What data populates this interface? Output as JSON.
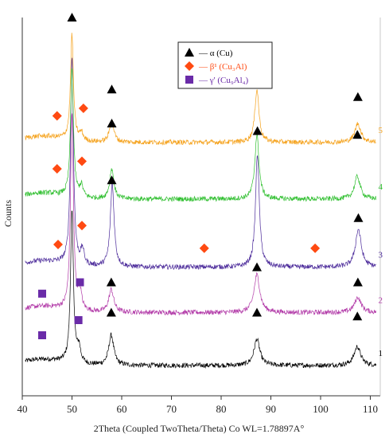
{
  "chart_data": {
    "type": "line",
    "title": "",
    "xlabel": "2Theta (Coupled TwoTheta/Theta) Co WL=1.78897A°",
    "ylabel": "Counts",
    "xlim": [
      40,
      112
    ],
    "xticks": [
      40,
      50,
      60,
      70,
      80,
      90,
      100,
      110
    ],
    "ylim": [
      0,
      100
    ],
    "grid": false,
    "legend_position": "top-center",
    "legend": [
      {
        "marker": "triangle",
        "text": "— α (Cu)",
        "color": "#000000"
      },
      {
        "marker": "diamond",
        "text": "— β¹ (Cu₃Al)",
        "color": "#ff4a12"
      },
      {
        "marker": "square",
        "text": "— γ' (Cu₉Al₄)",
        "color": "#6a2ba8"
      }
    ],
    "series": [
      {
        "name": "1",
        "color": "#000000",
        "baseline": 8,
        "peaks": [
          {
            "x": 50.0,
            "h": 40,
            "w": 0.35
          },
          {
            "x": 51.4,
            "h": 4,
            "w": 0.4
          },
          {
            "x": 57.9,
            "h": 8,
            "w": 0.6
          },
          {
            "x": 87.2,
            "h": 7,
            "w": 0.7
          },
          {
            "x": 107.4,
            "h": 5,
            "w": 0.8
          }
        ],
        "markers": [
          {
            "type": "square",
            "x": 44.0,
            "y": 16
          },
          {
            "type": "square",
            "x": 51.3,
            "y": 20
          },
          {
            "type": "triangle",
            "x": 57.9,
            "y": 22
          },
          {
            "type": "triangle",
            "x": 87.2,
            "y": 22
          },
          {
            "type": "triangle",
            "x": 107.4,
            "y": 21
          }
        ]
      },
      {
        "name": "2",
        "color": "#b23aa8",
        "baseline": 22,
        "peaks": [
          {
            "x": 50.0,
            "h": 52,
            "w": 0.35
          },
          {
            "x": 51.6,
            "h": 5,
            "w": 0.4
          },
          {
            "x": 57.9,
            "h": 6,
            "w": 0.6
          },
          {
            "x": 87.2,
            "h": 10,
            "w": 0.7
          },
          {
            "x": 107.5,
            "h": 4,
            "w": 0.8
          }
        ],
        "markers": [
          {
            "type": "square",
            "x": 44.0,
            "y": 27
          },
          {
            "type": "square",
            "x": 51.6,
            "y": 30
          },
          {
            "type": "triangle",
            "x": 57.9,
            "y": 30
          },
          {
            "type": "triangle",
            "x": 87.2,
            "y": 34
          },
          {
            "type": "triangle",
            "x": 107.5,
            "y": 30
          }
        ]
      },
      {
        "name": "3",
        "color": "#4b2a9a",
        "baseline": 34,
        "peaks": [
          {
            "x": 50.0,
            "h": 55,
            "w": 0.35
          },
          {
            "x": 52.1,
            "h": 4,
            "w": 0.4
          },
          {
            "x": 58.1,
            "h": 22,
            "w": 0.45
          },
          {
            "x": 87.3,
            "h": 30,
            "w": 0.45
          },
          {
            "x": 107.6,
            "h": 10,
            "w": 0.7
          }
        ],
        "markers": [
          {
            "type": "diamond",
            "x": 47.2,
            "y": 40
          },
          {
            "type": "diamond",
            "x": 52.0,
            "y": 45
          },
          {
            "type": "triangle",
            "x": 58.0,
            "y": 57
          },
          {
            "type": "diamond",
            "x": 76.6,
            "y": 39
          },
          {
            "type": "triangle",
            "x": 87.3,
            "y": 70
          },
          {
            "type": "diamond",
            "x": 98.9,
            "y": 39
          },
          {
            "type": "triangle",
            "x": 107.6,
            "y": 47
          }
        ]
      },
      {
        "name": "4",
        "color": "#2fbf2f",
        "baseline": 52,
        "peaks": [
          {
            "x": 50.0,
            "h": 34,
            "w": 0.35
          },
          {
            "x": 51.9,
            "h": 3,
            "w": 0.4
          },
          {
            "x": 58.0,
            "h": 8,
            "w": 0.5
          },
          {
            "x": 87.2,
            "h": 17,
            "w": 0.5
          },
          {
            "x": 107.4,
            "h": 6,
            "w": 0.7
          }
        ],
        "markers": [
          {
            "type": "diamond",
            "x": 47.0,
            "y": 60
          },
          {
            "type": "diamond",
            "x": 52.0,
            "y": 62
          },
          {
            "type": "triangle",
            "x": 58.0,
            "y": 72
          },
          {
            "type": "triangle",
            "x": 87.2,
            "y": 87
          },
          {
            "type": "triangle",
            "x": 107.4,
            "y": 69
          }
        ]
      },
      {
        "name": "5",
        "color": "#f5a21c",
        "baseline": 67,
        "peaks": [
          {
            "x": 50.0,
            "h": 28,
            "w": 0.35
          },
          {
            "x": 51.9,
            "h": 2,
            "w": 0.4
          },
          {
            "x": 58.0,
            "h": 6,
            "w": 0.5
          },
          {
            "x": 87.2,
            "h": 14,
            "w": 0.5
          },
          {
            "x": 107.5,
            "h": 5,
            "w": 0.7
          }
        ],
        "markers": [
          {
            "type": "triangle",
            "x": 50.0,
            "y": 100
          },
          {
            "type": "diamond",
            "x": 47.0,
            "y": 74
          },
          {
            "type": "diamond",
            "x": 52.3,
            "y": 76
          },
          {
            "type": "triangle",
            "x": 58.0,
            "y": 81
          },
          {
            "type": "triangle",
            "x": 87.2,
            "y": 87
          },
          {
            "type": "triangle",
            "x": 107.5,
            "y": 79
          }
        ]
      }
    ]
  },
  "colors": {
    "alpha": "#000000",
    "beta": "#ff4a12",
    "gamma": "#6a2ba8",
    "axis": "#333333"
  }
}
